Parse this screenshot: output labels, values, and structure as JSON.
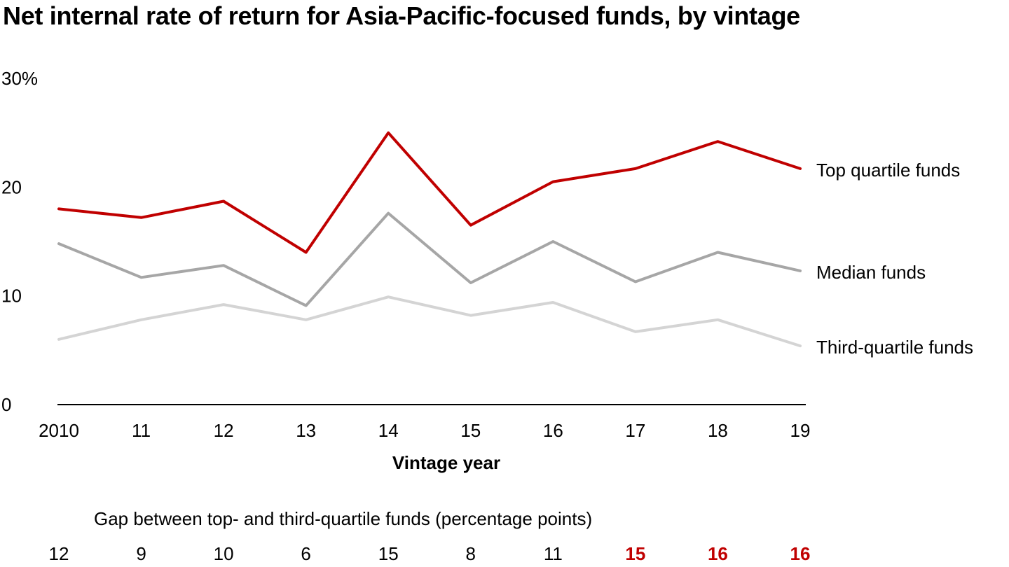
{
  "title": "Net internal rate of return for Asia-Pacific-focused funds, by vintage",
  "chart_data": {
    "type": "line",
    "title": "Net internal rate of return for Asia-Pacific-focused funds, by vintage",
    "xlabel": "Vintage year",
    "ylabel": "",
    "categories": [
      "2010",
      "11",
      "12",
      "13",
      "14",
      "15",
      "16",
      "17",
      "18",
      "19"
    ],
    "ylim": [
      0,
      30
    ],
    "yticks": [
      "0",
      "10",
      "20",
      "30%"
    ],
    "grid": false,
    "series": [
      {
        "name": "Top quartile funds",
        "color": "#c00000",
        "values": [
          18.0,
          17.2,
          18.7,
          14.0,
          25.0,
          16.5,
          20.5,
          21.7,
          24.2,
          21.7
        ]
      },
      {
        "name": "Median funds",
        "color": "#a6a6a6",
        "values": [
          14.8,
          11.7,
          12.8,
          9.1,
          17.6,
          11.2,
          15.0,
          11.3,
          14.0,
          12.3
        ]
      },
      {
        "name": "Third-quartile funds",
        "color": "#d4d4d4",
        "values": [
          6.0,
          7.8,
          9.2,
          7.8,
          9.9,
          8.2,
          9.4,
          6.7,
          7.8,
          5.4
        ]
      }
    ]
  },
  "gap": {
    "title": "Gap between top- and third-quartile funds (percentage points)",
    "values": [
      "12",
      "9",
      "10",
      "6",
      "15",
      "8",
      "11",
      "15",
      "16",
      "16"
    ],
    "highlighted": [
      false,
      false,
      false,
      false,
      false,
      false,
      false,
      true,
      true,
      true
    ],
    "highlight_color": "#c00000"
  }
}
